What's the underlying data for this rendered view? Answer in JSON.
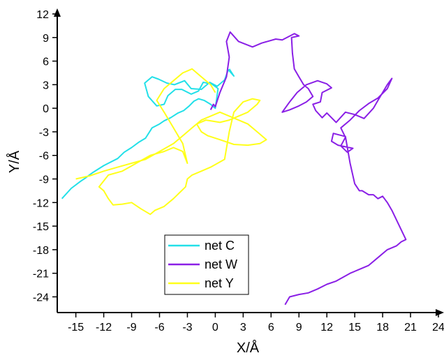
{
  "chart_data": {
    "type": "line",
    "title": "",
    "xlabel": "X/Å",
    "ylabel": "Y/Å",
    "xlim": [
      -17,
      24
    ],
    "ylim": [
      -26,
      12
    ],
    "xticks": [
      -15,
      -12,
      -9,
      -6,
      -3,
      0,
      3,
      6,
      9,
      12,
      15,
      18,
      21,
      24
    ],
    "yticks": [
      12,
      9,
      6,
      3,
      0,
      -3,
      -6,
      -9,
      -12,
      -15,
      -18,
      -21,
      -24
    ],
    "grid": false,
    "legend": "bottom-center",
    "series": [
      {
        "name": "net C",
        "color": "#22e0e8",
        "x": [
          -16.5,
          -15.5,
          -14.5,
          -14.0,
          -13.2,
          -12.0,
          -11.5,
          -10.5,
          -9.8,
          -9.0,
          -8.2,
          -7.5,
          -6.8,
          -6.0,
          -5.5,
          -4.8,
          -4.0,
          -3.4,
          -2.8,
          -2.3,
          -1.8,
          -1.2,
          -0.5,
          0.0,
          0.3,
          -0.4,
          -1.3,
          -1.8,
          -2.6,
          -3.6,
          -4.3,
          -5.1,
          -5.5,
          -6.3,
          -7.2,
          -7.6,
          -6.8,
          -6.1,
          -5.2,
          -4.4,
          -3.3,
          -2.6,
          -1.5,
          -0.6,
          0.2,
          1.0,
          1.4,
          2.0,
          1.5
        ],
        "y": [
          -11.5,
          -10.2,
          -9.3,
          -8.9,
          -8.2,
          -7.3,
          -7.0,
          -6.4,
          -5.6,
          -5.0,
          -4.3,
          -3.8,
          -2.5,
          -2.0,
          -1.6,
          -1.2,
          -0.6,
          -0.3,
          0.3,
          0.9,
          1.2,
          1.0,
          0.5,
          0.0,
          2.5,
          3.1,
          3.3,
          2.2,
          1.8,
          2.4,
          2.4,
          1.6,
          0.5,
          0.3,
          1.5,
          3.2,
          4.0,
          3.7,
          3.2,
          3.0,
          3.5,
          2.5,
          2.4,
          3.3,
          2.8,
          3.6,
          4.9,
          4.1,
          5.0
        ]
      },
      {
        "name": "net W",
        "color": "#8a1fe6",
        "x": [
          -0.5,
          -0.2,
          0.0,
          0.5,
          1.2,
          1.5,
          1.2,
          1.6,
          2.5,
          4.0,
          5.0,
          6.5,
          7.2,
          8.5,
          9.0,
          8.2,
          8.3,
          8.5,
          9.0,
          9.5,
          10.0,
          10.5,
          9.8,
          9.0,
          8.0,
          7.2,
          8.0,
          8.8,
          9.8,
          11.0,
          12.0,
          12.5,
          11.5,
          11.3,
          10.5,
          10.8,
          11.5,
          12.0,
          13.0,
          14.0,
          15.0,
          16.0,
          17.0,
          17.5,
          18.0,
          18.5,
          19.0,
          18.5,
          17.5,
          16.5,
          15.5,
          14.5,
          13.5,
          14.0,
          13.5,
          14.2,
          14.8,
          13.2,
          12.5,
          12.7,
          14.0,
          14.5,
          15.0,
          15.5,
          15.8,
          16.5,
          17.0,
          17.5,
          18.0,
          18.5,
          19.0,
          19.2,
          20.5,
          20.0,
          19.5,
          18.5,
          17.5,
          16.5,
          15.5,
          14.5,
          13.0,
          12.0,
          11.0,
          10.0,
          9.0,
          8.0,
          7.5
        ],
        "y": [
          -0.2,
          0.5,
          0.2,
          2.0,
          4.0,
          6.5,
          8.5,
          9.7,
          8.5,
          7.8,
          8.3,
          8.8,
          8.7,
          9.5,
          9.2,
          9.0,
          7.0,
          5.0,
          4.0,
          3.0,
          2.5,
          1.5,
          0.8,
          0.3,
          -0.2,
          -0.5,
          0.8,
          2.0,
          3.0,
          3.5,
          3.1,
          2.6,
          2.0,
          0.8,
          0.5,
          -0.3,
          -1.2,
          -0.6,
          -1.8,
          -0.5,
          -0.8,
          -1.3,
          0.0,
          1.0,
          2.0,
          3.0,
          3.8,
          2.5,
          1.3,
          0.6,
          -0.3,
          -1.5,
          -2.5,
          -3.7,
          -4.8,
          -5.6,
          -5.1,
          -4.7,
          -4.2,
          -3.2,
          -3.6,
          -7.0,
          -9.6,
          -10.5,
          -10.5,
          -11.0,
          -11.0,
          -11.5,
          -11.2,
          -12.0,
          -13.0,
          -13.5,
          -16.7,
          -17.0,
          -17.5,
          -18.0,
          -19.0,
          -20.0,
          -20.5,
          -21.0,
          -22.0,
          -22.4,
          -23.0,
          -23.5,
          -23.7,
          -24.0,
          -25.0
        ]
      },
      {
        "name": "net Y",
        "color": "#ffff1a",
        "x": [
          -15.0,
          -13.5,
          -12.0,
          -10.5,
          -9.0,
          -7.5,
          -6.0,
          -4.5,
          -3.5,
          -2.5,
          -1.5,
          -0.5,
          0.5,
          1.5,
          2.5,
          3.5,
          4.5,
          5.5,
          4.8,
          3.5,
          2.0,
          0.5,
          -0.8,
          -1.5,
          -2.0,
          -1.0,
          0.5,
          1.5,
          2.5,
          3.5,
          4.5,
          4.8,
          4.0,
          3.0,
          2.0,
          1.5,
          1.0,
          -0.5,
          -1.5,
          -2.5,
          -3.0,
          -3.2,
          -4.5,
          -5.5,
          -6.5,
          -7.0,
          -8.0,
          -9.0,
          -10.0,
          -11.0,
          -11.5,
          -12.0,
          -12.5,
          -11.5,
          -10.0,
          -8.5,
          -7.0,
          -5.5,
          -4.5,
          -3.5,
          -3.0,
          -3.5,
          -4.5,
          -5.5,
          -6.3,
          -5.5,
          -4.5,
          -3.5,
          -2.5,
          -1.5,
          -0.5,
          0.0
        ],
        "y": [
          -9.0,
          -8.6,
          -8.0,
          -7.5,
          -7.0,
          -6.5,
          -5.5,
          -4.5,
          -3.5,
          -2.5,
          -1.5,
          -1.0,
          -0.5,
          -1.0,
          -1.5,
          -2.0,
          -3.0,
          -4.0,
          -4.5,
          -4.7,
          -4.6,
          -4.0,
          -3.5,
          -3.0,
          -2.0,
          -1.5,
          -1.8,
          -1.5,
          -1.0,
          -0.5,
          0.5,
          1.0,
          1.2,
          0.8,
          -0.5,
          -3.0,
          -6.5,
          -7.5,
          -8.0,
          -8.5,
          -9.0,
          -10.0,
          -11.5,
          -12.5,
          -13.0,
          -13.5,
          -12.8,
          -12.0,
          -12.2,
          -12.3,
          -11.5,
          -10.5,
          -10.0,
          -8.5,
          -8.0,
          -7.0,
          -6.0,
          -5.5,
          -5.0,
          -5.5,
          -7.0,
          -4.5,
          -2.5,
          -0.5,
          1.0,
          2.5,
          3.5,
          4.5,
          5.0,
          4.0,
          3.0,
          2.0
        ]
      }
    ]
  }
}
